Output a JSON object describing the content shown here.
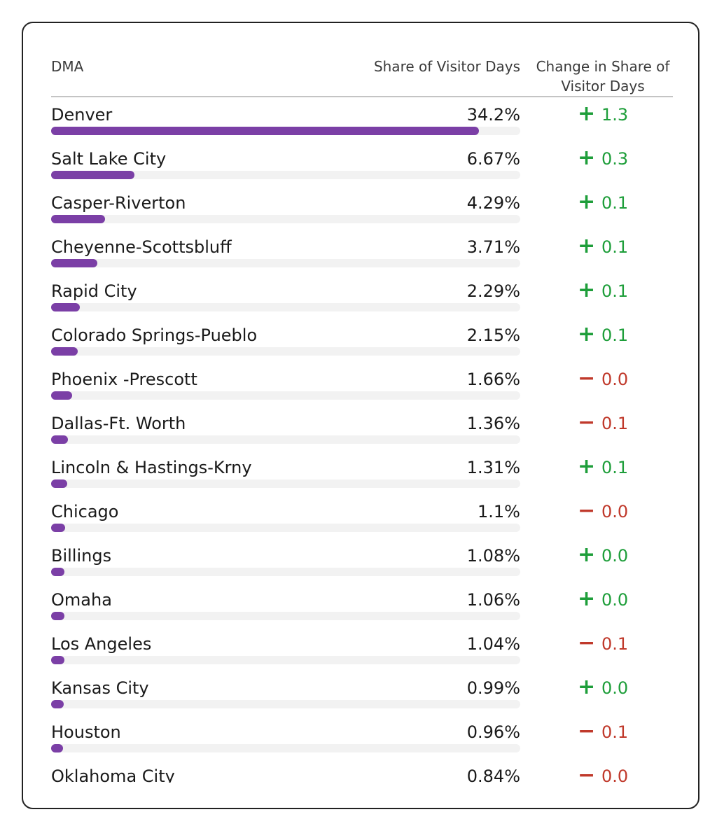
{
  "chart_data": {
    "type": "table",
    "columns": [
      "DMA",
      "Share of Visitor Days",
      "Change in Share of Visitor Days"
    ],
    "rows": [
      {
        "dma": "Denver",
        "share_label": "34.2%",
        "share": 34.2,
        "sign": "+",
        "change": "1.3"
      },
      {
        "dma": "Salt Lake City",
        "share_label": "6.67%",
        "share": 6.67,
        "sign": "+",
        "change": "0.3"
      },
      {
        "dma": "Casper-Riverton",
        "share_label": "4.29%",
        "share": 4.29,
        "sign": "+",
        "change": "0.1"
      },
      {
        "dma": "Cheyenne-Scottsbluff",
        "share_label": "3.71%",
        "share": 3.71,
        "sign": "+",
        "change": "0.1"
      },
      {
        "dma": "Rapid City",
        "share_label": "2.29%",
        "share": 2.29,
        "sign": "+",
        "change": "0.1"
      },
      {
        "dma": "Colorado Springs-Pueblo",
        "share_label": "2.15%",
        "share": 2.15,
        "sign": "+",
        "change": "0.1"
      },
      {
        "dma": "Phoenix -Prescott",
        "share_label": "1.66%",
        "share": 1.66,
        "sign": "−",
        "change": "0.0"
      },
      {
        "dma": "Dallas-Ft. Worth",
        "share_label": "1.36%",
        "share": 1.36,
        "sign": "−",
        "change": "0.1"
      },
      {
        "dma": "Lincoln & Hastings-Krny",
        "share_label": "1.31%",
        "share": 1.31,
        "sign": "+",
        "change": "0.1"
      },
      {
        "dma": "Chicago",
        "share_label": "1.1%",
        "share": 1.1,
        "sign": "−",
        "change": "0.0"
      },
      {
        "dma": "Billings",
        "share_label": "1.08%",
        "share": 1.08,
        "sign": "+",
        "change": "0.0"
      },
      {
        "dma": "Omaha",
        "share_label": "1.06%",
        "share": 1.06,
        "sign": "+",
        "change": "0.0"
      },
      {
        "dma": "Los Angeles",
        "share_label": "1.04%",
        "share": 1.04,
        "sign": "−",
        "change": "0.1"
      },
      {
        "dma": "Kansas City",
        "share_label": "0.99%",
        "share": 0.99,
        "sign": "+",
        "change": "0.0"
      },
      {
        "dma": "Houston",
        "share_label": "0.96%",
        "share": 0.96,
        "sign": "−",
        "change": "0.1"
      },
      {
        "dma": "Oklahoma City",
        "share_label": "0.84%",
        "share": 0.84,
        "sign": "−",
        "change": "0.0"
      }
    ],
    "bar_max": 37.5
  },
  "colors": {
    "bar": "#7b3fa6",
    "track": "#f2f2f2",
    "positive": "#1e9e3a",
    "negative": "#c0392b"
  }
}
